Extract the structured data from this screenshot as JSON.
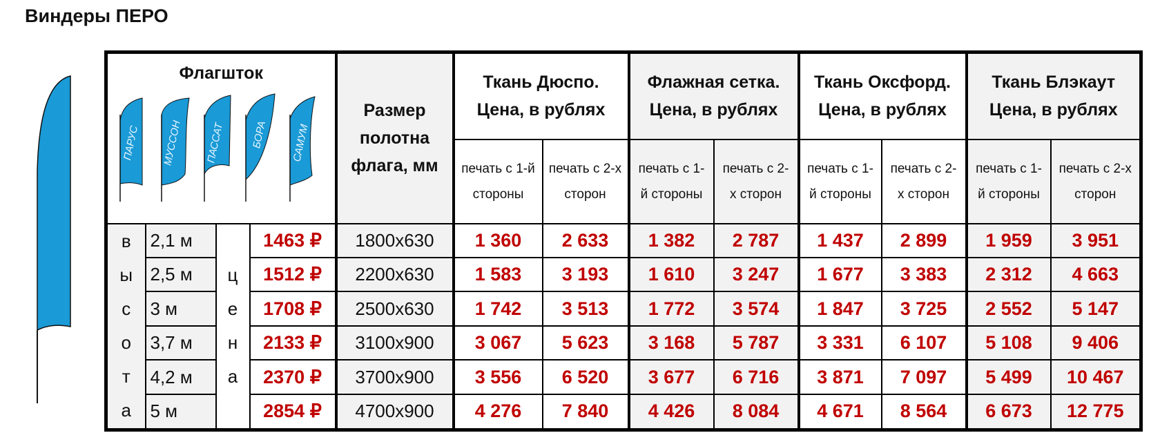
{
  "title": "Виндеры ПЕРО",
  "colors": {
    "flag": "#1a9ad6",
    "price": "#c00000",
    "cell_gray": "#f2f2f2"
  },
  "header": {
    "flagpole": "Флагшток",
    "flag_models": [
      "ПАРУС",
      "МУССОН",
      "ПАССАТ",
      "БОРА",
      "САМУМ"
    ],
    "size": "Размер полотна флага, мм",
    "fabrics": [
      {
        "name": "Ткань Дюспо.",
        "price_label": "Цена, в рублях"
      },
      {
        "name": "Флажная сетка.",
        "price_label": "Цена, в рублях"
      },
      {
        "name": "Ткань Оксфорд.",
        "price_label": "Цена, в рублях"
      },
      {
        "name": "Ткань Блэкаут",
        "price_label": "Цена, в рублях"
      }
    ],
    "print_one": "печать с 1-й стороны",
    "print_two": "печать с 2-х сторон"
  },
  "height_letters": [
    "в",
    "ы",
    "с",
    "о",
    "т",
    "а"
  ],
  "price_letters": [
    "",
    "ц",
    "е",
    "н",
    "а",
    ""
  ],
  "rows": [
    {
      "height": "2,1 м",
      "pole_price": "1463 ₽",
      "size": "1800x630",
      "prices": [
        "1 360",
        "2 633",
        "1 382",
        "2 787",
        "1 437",
        "2 899",
        "1 959",
        "3 951"
      ]
    },
    {
      "height": "2,5 м",
      "pole_price": "1512 ₽",
      "size": "2200x630",
      "prices": [
        "1 583",
        "3 193",
        "1 610",
        "3 247",
        "1 677",
        "3 383",
        "2 312",
        "4 663"
      ]
    },
    {
      "height": "3 м",
      "pole_price": "1708 ₽",
      "size": "2500x630",
      "prices": [
        "1 742",
        "3 513",
        "1 772",
        "3 574",
        "1 847",
        "3 725",
        "2 552",
        "5 147"
      ]
    },
    {
      "height": "3,7 м",
      "pole_price": "2133 ₽",
      "size": "3100x900",
      "prices": [
        "3 067",
        "5 623",
        "3 168",
        "5 787",
        "3 331",
        "6 107",
        "5 108",
        "9 406"
      ]
    },
    {
      "height": "4,2 м",
      "pole_price": "2370 ₽",
      "size": "3700x900",
      "prices": [
        "3 556",
        "6 520",
        "3 677",
        "6 716",
        "3 871",
        "7 097",
        "5 499",
        "10 467"
      ]
    },
    {
      "height": "5 м",
      "pole_price": "2854 ₽",
      "size": "4700x900",
      "prices": [
        "4 276",
        "7 840",
        "4 426",
        "8 084",
        "4 671",
        "8 564",
        "6 673",
        "12 775"
      ]
    }
  ]
}
